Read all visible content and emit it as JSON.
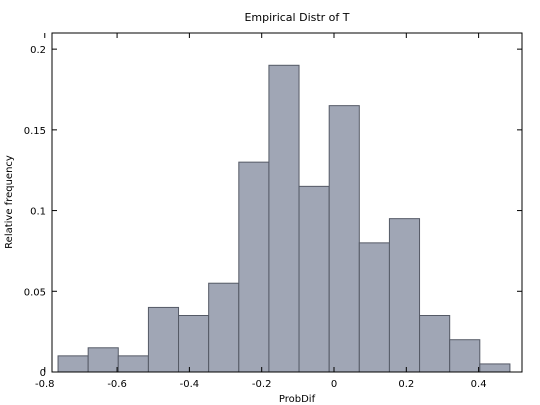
{
  "chart_data": {
    "type": "bar",
    "title": "Empirical Distr of T",
    "xlabel": "ProbDif",
    "ylabel": "Relative frequency",
    "xlim": [
      -0.78,
      0.52
    ],
    "ylim": [
      0,
      0.21
    ],
    "bin_width": 0.0833,
    "bins": [
      {
        "left": -0.7633,
        "value": 0.01
      },
      {
        "left": -0.68,
        "value": 0.015
      },
      {
        "left": -0.5967,
        "value": 0.01
      },
      {
        "left": -0.5133,
        "value": 0.04
      },
      {
        "left": -0.43,
        "value": 0.035
      },
      {
        "left": -0.3467,
        "value": 0.055
      },
      {
        "left": -0.2633,
        "value": 0.13
      },
      {
        "left": -0.18,
        "value": 0.19
      },
      {
        "left": -0.0967,
        "value": 0.115
      },
      {
        "left": -0.0133,
        "value": 0.165
      },
      {
        "left": 0.07,
        "value": 0.08
      },
      {
        "left": 0.1533,
        "value": 0.095
      },
      {
        "left": 0.2367,
        "value": 0.035
      },
      {
        "left": 0.32,
        "value": 0.02
      },
      {
        "left": 0.4033,
        "value": 0.005
      }
    ],
    "x_ticks": [
      -0.8,
      -0.6,
      -0.4,
      -0.2,
      0,
      0.2,
      0.4
    ],
    "x_tick_labels": [
      "-0.8",
      "-0.6",
      "-0.4",
      "-0.2",
      "0",
      "0.2",
      "0.4"
    ],
    "y_ticks": [
      0,
      0.05,
      0.1,
      0.15,
      0.2
    ],
    "y_tick_labels": [
      "0",
      "0.05",
      "0.1",
      "0.15",
      "0.2"
    ],
    "grid": false,
    "bar_color": "#a0a6b5",
    "bar_edge_color": "#555a66"
  }
}
